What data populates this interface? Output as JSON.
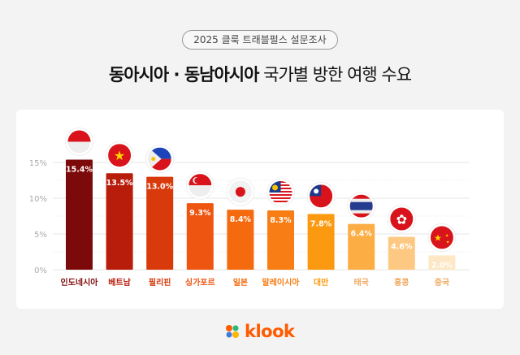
{
  "header": {
    "survey_badge": "2025 클룩 트래블펄스 설문조사",
    "title_bold": "동아시아 · 동남아시아",
    "title_regular": "국가별 방한 여행 수요"
  },
  "chart_data": {
    "type": "bar",
    "title": "",
    "xlabel": "",
    "ylabel": "",
    "ylim": [
      0,
      15
    ],
    "yticks": [
      "0%",
      "5%",
      "10%",
      "15%"
    ],
    "ytick_values": [
      0,
      5,
      10,
      15
    ],
    "grid": true,
    "categories": [
      "인도네시아",
      "베트남",
      "필리핀",
      "싱가포르",
      "일본",
      "말레이시아",
      "대만",
      "태국",
      "홍콩",
      "중국"
    ],
    "values": [
      15.4,
      13.5,
      13.0,
      9.3,
      8.4,
      8.3,
      7.8,
      6.4,
      4.6,
      2.0
    ],
    "data_labels": [
      "15.4%",
      "13.5%",
      "13.0%",
      "9.3%",
      "8.4%",
      "8.3%",
      "7.8%",
      "6.4%",
      "4.6%",
      "2.0%"
    ],
    "bar_colors": [
      "#7d0a0a",
      "#b81d0b",
      "#d93a0c",
      "#ee5510",
      "#f56a0e",
      "#f77d14",
      "#fb9a10",
      "#fcae45",
      "#fdc982",
      "#fde7c4"
    ],
    "flag_icons": [
      "indonesia-flag-icon",
      "vietnam-flag-icon",
      "philippines-flag-icon",
      "singapore-flag-icon",
      "japan-flag-icon",
      "malaysia-flag-icon",
      "taiwan-flag-icon",
      "thailand-flag-icon",
      "hongkong-flag-icon",
      "china-flag-icon"
    ]
  },
  "footer": {
    "brand": "klook",
    "brand_color": "#ff5b00"
  }
}
